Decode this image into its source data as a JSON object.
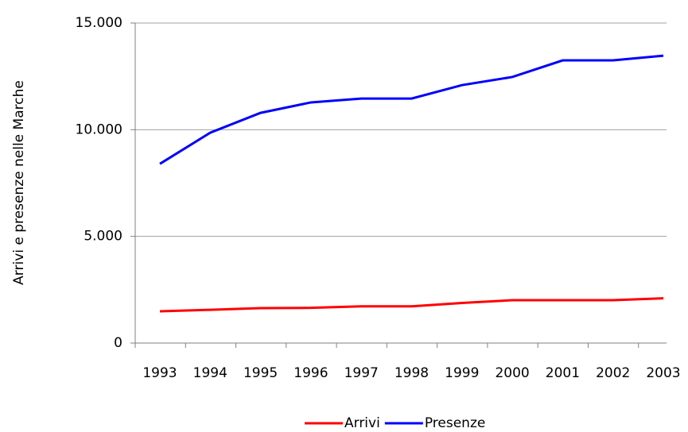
{
  "chart_data": {
    "type": "line",
    "y_label": "Arrivi e presenze nelle Marche",
    "categories": [
      "1993",
      "1994",
      "1995",
      "1996",
      "1997",
      "1998",
      "1999",
      "2000",
      "2001",
      "2002",
      "2003"
    ],
    "series": [
      {
        "name": "Arrivi",
        "color": "#ff0000",
        "values": [
          1490,
          1560,
          1640,
          1650,
          1720,
          1720,
          1880,
          2010,
          2010,
          2010,
          2100
        ]
      },
      {
        "name": "Presenze",
        "color": "#0000ff",
        "values": [
          8400,
          9860,
          10790,
          11280,
          11460,
          11460,
          12090,
          12470,
          13250,
          13250,
          13470
        ]
      }
    ],
    "ylim": [
      0,
      15000
    ],
    "yticks": [
      {
        "value": 0,
        "label": "0"
      },
      {
        "value": 5000,
        "label": "5.000"
      },
      {
        "value": 10000,
        "label": "10.000"
      },
      {
        "value": 15000,
        "label": "15.000"
      }
    ],
    "grid": true,
    "legend": "bottom"
  }
}
